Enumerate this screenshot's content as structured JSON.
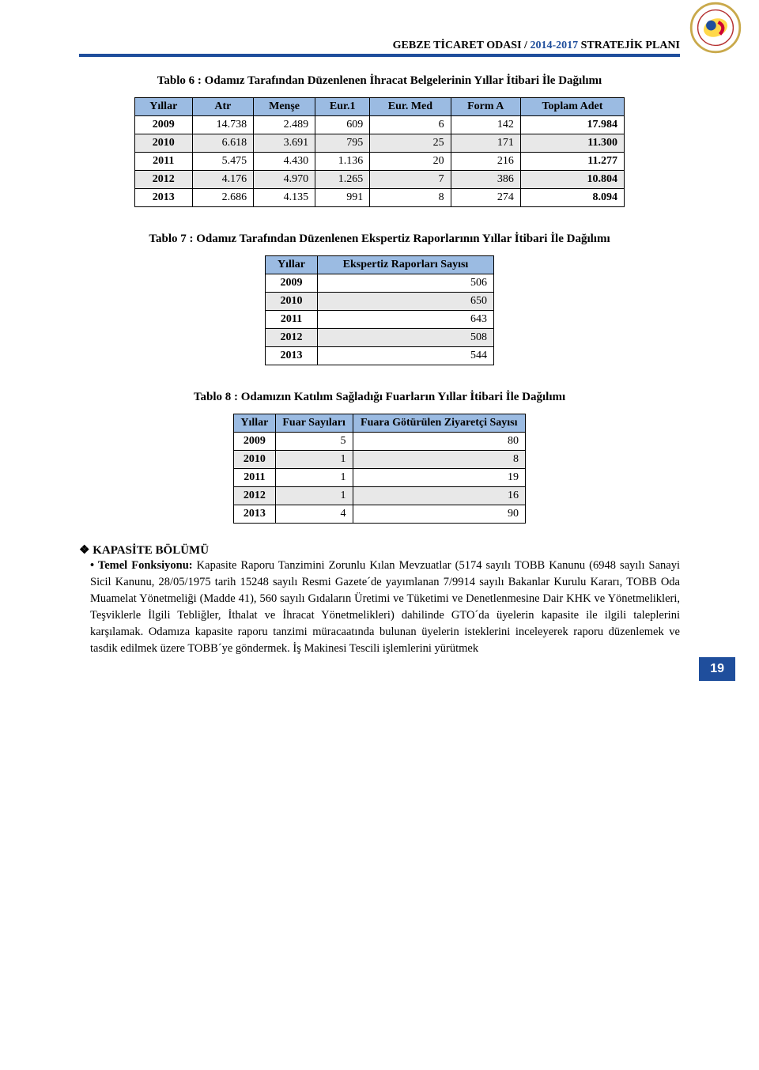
{
  "header": {
    "org": "GEBZE TİCARET ODASI",
    "sep": " / ",
    "years": "2014-2017",
    "suffix": " STRATEJİK PLANI"
  },
  "table6": {
    "title": "Tablo 6 : Odamız Tarafından Düzenlenen İhracat Belgelerinin Yıllar İtibari İle Dağılımı",
    "headers": [
      "Yıllar",
      "Atr",
      "Menşe",
      "Eur.1",
      "Eur. Med",
      "Form A",
      "Toplam Adet"
    ],
    "rows": [
      [
        "2009",
        "14.738",
        "2.489",
        "609",
        "6",
        "142",
        "17.984"
      ],
      [
        "2010",
        "6.618",
        "3.691",
        "795",
        "25",
        "171",
        "11.300"
      ],
      [
        "2011",
        "5.475",
        "4.430",
        "1.136",
        "20",
        "216",
        "11.277"
      ],
      [
        "2012",
        "4.176",
        "4.970",
        "1.265",
        "7",
        "386",
        "10.804"
      ],
      [
        "2013",
        "2.686",
        "4.135",
        "991",
        "8",
        "274",
        "8.094"
      ]
    ],
    "alt_rows": [
      1,
      3
    ],
    "header_bg": "#9bbbe2",
    "alt_bg": "#e8e8e8"
  },
  "table7": {
    "title": "Tablo 7 : Odamız Tarafından Düzenlenen Ekspertiz Raporlarının Yıllar İtibari İle Dağılımı",
    "headers": [
      "Yıllar",
      "Ekspertiz Raporları Sayısı"
    ],
    "rows": [
      [
        "2009",
        "506"
      ],
      [
        "2010",
        "650"
      ],
      [
        "2011",
        "643"
      ],
      [
        "2012",
        "508"
      ],
      [
        "2013",
        "544"
      ]
    ],
    "alt_rows": [
      1,
      3
    ],
    "header_bg": "#9bbbe2",
    "alt_bg": "#e8e8e8"
  },
  "table8": {
    "title": "Tablo 8 : Odamızın Katılım Sağladığı Fuarların Yıllar İtibari İle Dağılımı",
    "headers": [
      "Yıllar",
      "Fuar Sayıları",
      "Fuara Götürülen Ziyaretçi Sayısı"
    ],
    "rows": [
      [
        "2009",
        "5",
        "80"
      ],
      [
        "2010",
        "1",
        "8"
      ],
      [
        "2011",
        "1",
        "19"
      ],
      [
        "2012",
        "1",
        "16"
      ],
      [
        "2013",
        "4",
        "90"
      ]
    ],
    "alt_rows": [
      1,
      3
    ],
    "header_bg": "#9bbbe2",
    "alt_bg": "#e8e8e8"
  },
  "section": {
    "heading": "KAPASİTE BÖLÜMÜ",
    "lead": "Temel Fonksiyonu:",
    "body": " Kapasite Raporu Tanzimini Zorunlu Kılan Mevzuatlar  (5174 sayılı TOBB Kanunu (6948 sayılı Sanayi Sicil Kanunu, 28/05/1975 tarih 15248 sayılı Resmi Gazete´de yayımlanan 7/9914 sayılı Bakanlar Kurulu Kararı, TOBB Oda Muamelat Yönetmeliği (Madde 41), 560 sayılı Gıdaların Üretimi ve Tüketimi ve Denetlenmesine Dair KHK ve Yönetmelikleri, Teşviklerle İlgili Tebliğler, İthalat ve İhracat Yönetmelikleri) dahilinde GTO´da üyelerin kapasite ile ilgili taleplerini karşılamak. Odamıza kapasite raporu tanzimi müracaatında bulunan üyelerin isteklerini inceleyerek raporu düzenlemek ve tasdik edilmek üzere TOBB´ye göndermek. İş Makinesi Tescili işlemlerini yürütmek"
  },
  "page_number": "19",
  "colors": {
    "brand_blue": "#1f4e9c",
    "header_cell_bg": "#9bbbe2",
    "alt_row_bg": "#e8e8e8",
    "background": "#ffffff",
    "text": "#000000"
  }
}
